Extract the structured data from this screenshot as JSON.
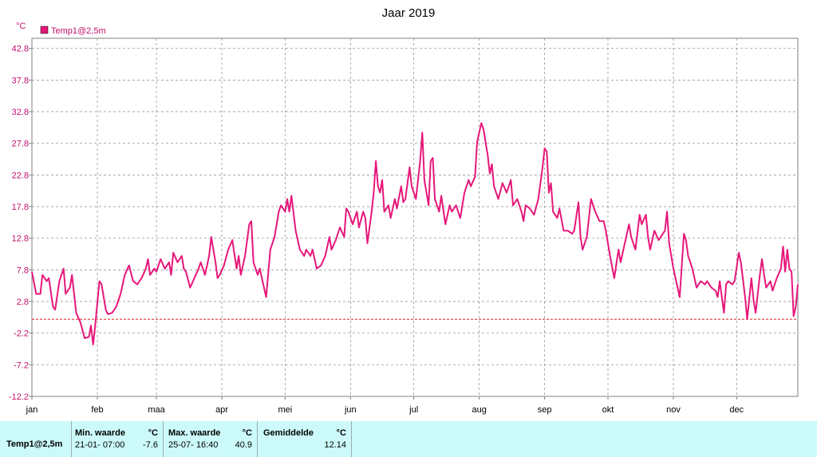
{
  "chart_data": {
    "type": "line",
    "title": "Jaar 2019",
    "y_unit": "°C",
    "legend_position": "top-left",
    "grid": true,
    "reference_line": {
      "value": 0,
      "color": "#e02020"
    },
    "xlim": [
      1,
      364
    ],
    "xticks": [
      {
        "value": 1,
        "label": "jan"
      },
      {
        "value": 32,
        "label": "feb"
      },
      {
        "value": 60,
        "label": "maa"
      },
      {
        "value": 91,
        "label": "apr"
      },
      {
        "value": 121,
        "label": "mei"
      },
      {
        "value": 152,
        "label": "jun"
      },
      {
        "value": 182,
        "label": "jul"
      },
      {
        "value": 213,
        "label": "aug"
      },
      {
        "value": 244,
        "label": "sep"
      },
      {
        "value": 274,
        "label": "okt"
      },
      {
        "value": 305,
        "label": "nov"
      },
      {
        "value": 335,
        "label": "dec"
      }
    ],
    "ylim": [
      -12.2,
      44.4
    ],
    "yticks": [
      -12.2,
      -7.2,
      -2.2,
      2.8,
      7.8,
      12.8,
      17.8,
      22.8,
      27.8,
      32.8,
      37.8,
      42.8
    ],
    "x": [
      1,
      3,
      5,
      6,
      8,
      9,
      11,
      12,
      14,
      16,
      17,
      19,
      20,
      22,
      24,
      26,
      28,
      29,
      30,
      31,
      33,
      34,
      36,
      37,
      39,
      41,
      43,
      45,
      47,
      49,
      51,
      53,
      55,
      56,
      57,
      59,
      60,
      62,
      64,
      66,
      67,
      68,
      70,
      72,
      73,
      74,
      76,
      78,
      80,
      81,
      83,
      85,
      86,
      88,
      89,
      90,
      92,
      94,
      96,
      98,
      99,
      100,
      102,
      104,
      105,
      106,
      108,
      109,
      111,
      112,
      114,
      116,
      118,
      119,
      121,
      122,
      123,
      124,
      126,
      128,
      130,
      131,
      133,
      134,
      136,
      138,
      140,
      142,
      143,
      145,
      147,
      149,
      150,
      151,
      153,
      155,
      156,
      158,
      159,
      160,
      162,
      163,
      164,
      165,
      166,
      167,
      168,
      170,
      171,
      173,
      174,
      176,
      177,
      178,
      180,
      181,
      183,
      185,
      186,
      187,
      189,
      190,
      191,
      192,
      194,
      195,
      197,
      199,
      200,
      202,
      204,
      206,
      208,
      209,
      211,
      212,
      214,
      215,
      217,
      218,
      219,
      220,
      222,
      224,
      226,
      228,
      229,
      231,
      233,
      234,
      235,
      237,
      239,
      241,
      243,
      244,
      245,
      246,
      247,
      248,
      250,
      251,
      253,
      255,
      257,
      258,
      260,
      261,
      262,
      264,
      266,
      268,
      270,
      272,
      273,
      275,
      277,
      279,
      280,
      282,
      284,
      285,
      287,
      289,
      290,
      292,
      293,
      294,
      296,
      298,
      299,
      301,
      302,
      303,
      305,
      307,
      308,
      310,
      311,
      312,
      314,
      316,
      318,
      320,
      321,
      323,
      325,
      326,
      327,
      329,
      330,
      331,
      333,
      334,
      336,
      337,
      339,
      340,
      342,
      343,
      344,
      346,
      347,
      348,
      349,
      351,
      352,
      354,
      356,
      357,
      358,
      359,
      360,
      361,
      362,
      363,
      364
    ],
    "series": [
      {
        "name": "Temp1@2,5m",
        "color": "#e6177a",
        "values": [
          7.5,
          4,
          4,
          7,
          6,
          6.5,
          2,
          1.5,
          6,
          8,
          4,
          5,
          7,
          1,
          -0.5,
          -3,
          -2.8,
          -1,
          -4,
          -1,
          6,
          5.5,
          1.5,
          0.8,
          1,
          2,
          4,
          7,
          8.5,
          6,
          5.5,
          6.5,
          8,
          9.5,
          7,
          8,
          7.5,
          9.5,
          8,
          9,
          7,
          10.5,
          9,
          10,
          8,
          7.5,
          5,
          6.5,
          8,
          9,
          7,
          10,
          13,
          9,
          6.5,
          7,
          8.5,
          11,
          12.5,
          8,
          10,
          7,
          10,
          15,
          15.5,
          9,
          7,
          8,
          5,
          3.5,
          11,
          13,
          17,
          18,
          17,
          19,
          17,
          19.5,
          14,
          11,
          10,
          11,
          10,
          11,
          8,
          8.5,
          10,
          13,
          11,
          12.5,
          14.5,
          13,
          17.5,
          17,
          15,
          17,
          14.5,
          17,
          16,
          12,
          17,
          20,
          25,
          21,
          20,
          22,
          17,
          18,
          16,
          19,
          17.5,
          21,
          18.5,
          19,
          24,
          21,
          19,
          25,
          29.5,
          22,
          18,
          25,
          25.5,
          19,
          17,
          19.5,
          15,
          18,
          17,
          18,
          16,
          20,
          22,
          21,
          22.5,
          28,
          31,
          30,
          26,
          23,
          24.5,
          21,
          19,
          21.5,
          20,
          22,
          18,
          19,
          17,
          15.5,
          18,
          17.5,
          16.5,
          19,
          24,
          27,
          26.5,
          20,
          21.5,
          17,
          16,
          17.5,
          14,
          14,
          13.5,
          14,
          18.5,
          13,
          11,
          13,
          19,
          17,
          15.5,
          15.5,
          14,
          10,
          6.5,
          11,
          9,
          12,
          15,
          13,
          11,
          16.5,
          15,
          16.5,
          13,
          11,
          14,
          12.5,
          13,
          14,
          17,
          12,
          8,
          5,
          3.5,
          13.5,
          12.5,
          10,
          8,
          5,
          6,
          5.5,
          6,
          5,
          4.5,
          3.5,
          6,
          1,
          5.5,
          6,
          5.5,
          6,
          10.5,
          9,
          3.5,
          0,
          6.5,
          3,
          1,
          7,
          9.5,
          7,
          5,
          6,
          4.5,
          6.5,
          8,
          11.5,
          7.5,
          11,
          8,
          7.5,
          0.5,
          2,
          5.5
        ]
      }
    ]
  },
  "stats": {
    "columns": [
      {
        "label": "Min. waarde",
        "unit": "°C",
        "time": "21-01- 07:00",
        "value": "-7.6"
      },
      {
        "label": "Max. waarde",
        "unit": "°C",
        "time": "25-07- 16:40",
        "value": "40.9"
      },
      {
        "label": "Gemiddelde",
        "unit": "°C",
        "value": "12.14"
      }
    ]
  }
}
